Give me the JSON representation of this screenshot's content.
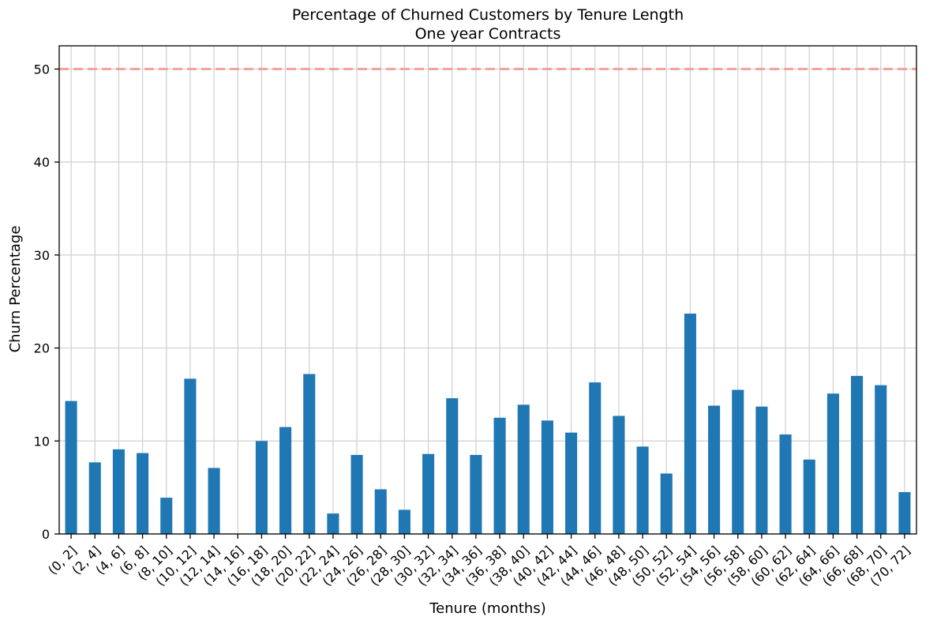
{
  "chart_data": {
    "type": "bar",
    "title": "Percentage of Churned Customers by Tenure Length",
    "subtitle": "One year Contracts",
    "xlabel": "Tenure (months)",
    "ylabel": "Churn Percentage",
    "ylim": [
      0,
      52.5
    ],
    "yticks": [
      0,
      10,
      20,
      30,
      40,
      50
    ],
    "grid": true,
    "reference_line": {
      "value": 50,
      "color": "#f4a09a",
      "style": "dashed"
    },
    "bar_color": "#1f77b4",
    "categories": [
      "(0, 2]",
      "(2, 4]",
      "(4, 6]",
      "(6, 8]",
      "(8, 10]",
      "(10, 12]",
      "(12, 14]",
      "(14, 16]",
      "(16, 18]",
      "(18, 20]",
      "(20, 22]",
      "(22, 24]",
      "(24, 26]",
      "(26, 28]",
      "(28, 30]",
      "(30, 32]",
      "(32, 34]",
      "(34, 36]",
      "(36, 38]",
      "(38, 40]",
      "(40, 42]",
      "(42, 44]",
      "(44, 46]",
      "(46, 48]",
      "(48, 50]",
      "(50, 52]",
      "(52, 54]",
      "(54, 56]",
      "(56, 58]",
      "(58, 60]",
      "(60, 62]",
      "(62, 64]",
      "(64, 66]",
      "(66, 68]",
      "(68, 70]",
      "(70, 72]"
    ],
    "values": [
      14.3,
      7.7,
      9.1,
      8.7,
      3.9,
      16.7,
      7.1,
      0.0,
      10.0,
      11.5,
      17.2,
      2.2,
      8.5,
      4.8,
      2.6,
      8.6,
      14.6,
      8.5,
      12.5,
      13.9,
      12.2,
      10.9,
      16.3,
      12.7,
      9.4,
      6.5,
      23.7,
      13.8,
      15.5,
      13.7,
      10.7,
      8.0,
      15.1,
      17.0,
      16.0,
      4.5
    ]
  }
}
